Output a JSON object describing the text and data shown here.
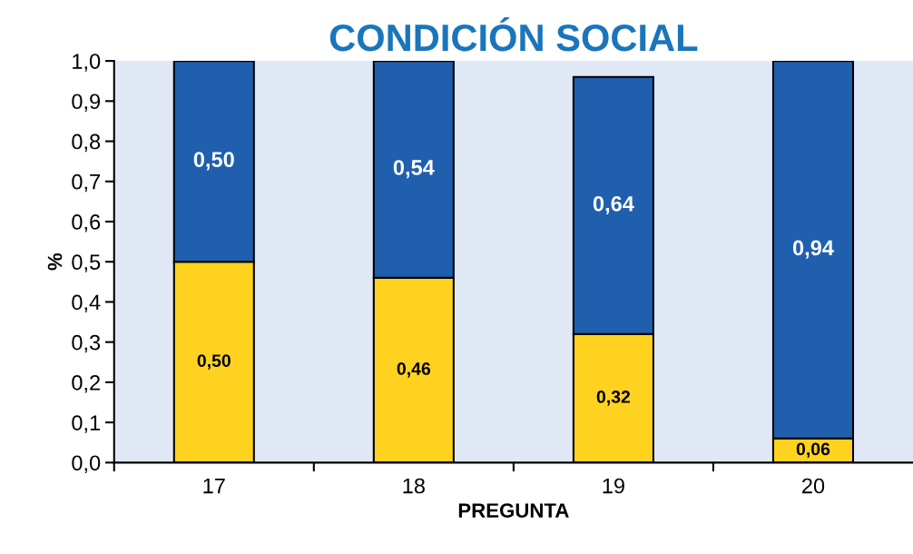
{
  "chart_data": {
    "type": "bar",
    "title": "CONDICIÓN SOCIAL",
    "xlabel": "PREGUNTA",
    "ylabel": "%",
    "categories": [
      "17",
      "18",
      "19",
      "20"
    ],
    "stacked": true,
    "series": [
      {
        "color": "#ffd21f",
        "values": [
          0.5,
          0.46,
          0.32,
          0.06
        ],
        "value_labels": [
          "0,50",
          "0,46",
          "0,32",
          "0,06"
        ]
      },
      {
        "color": "#1f5fae",
        "values": [
          0.5,
          0.54,
          0.64,
          0.94
        ],
        "value_labels": [
          "0,50",
          "0,54",
          "0,64",
          "0,94"
        ]
      }
    ],
    "ylim": [
      0,
      1.0
    ],
    "yticks": [
      {
        "value": 0,
        "label": "0,0"
      },
      {
        "value": 0.1,
        "label": "0,1"
      },
      {
        "value": 0.2,
        "label": "0,2"
      },
      {
        "value": 0.3,
        "label": "0,3"
      },
      {
        "value": 0.4,
        "label": "0,4"
      },
      {
        "value": 0.5,
        "label": "0,5"
      },
      {
        "value": 0.6,
        "label": "0,6"
      },
      {
        "value": 0.7,
        "label": "0,7"
      },
      {
        "value": 0.8,
        "label": "0,8"
      },
      {
        "value": 0.9,
        "label": "0,9"
      },
      {
        "value": 1.0,
        "label": "1,0"
      }
    ],
    "grid": false,
    "legend": false
  }
}
